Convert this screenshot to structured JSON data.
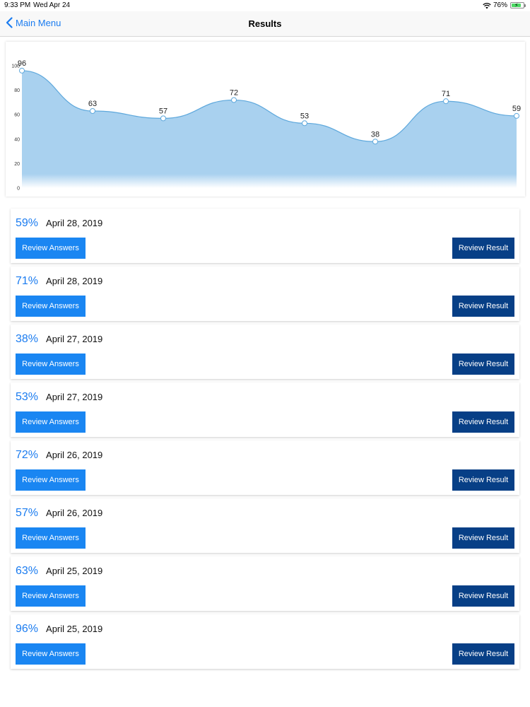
{
  "status_bar": {
    "time": "9:33 PM",
    "date": "Wed Apr 24",
    "battery": "76%",
    "wifi_icon": "wifi-icon",
    "battery_icon": "battery-charging-icon"
  },
  "nav": {
    "back_label": "Main Menu",
    "back_icon": "chevron-left-icon",
    "title": "Results"
  },
  "colors": {
    "accent": "#1b7cf0",
    "review_answers_bg": "#1a86f2",
    "review_result_bg": "#073f86",
    "chart_fill": "#a9d1ef",
    "chart_line": "#5ea8dc"
  },
  "chart_data": {
    "type": "area",
    "y_ticks": [
      "0",
      "20",
      "40",
      "60",
      "80",
      "100"
    ],
    "ylim": [
      0,
      100
    ],
    "values": [
      96,
      63,
      57,
      72,
      53,
      38,
      71,
      59
    ],
    "point_labels": [
      "96",
      "63",
      "57",
      "72",
      "53",
      "38",
      "71",
      "59"
    ],
    "title": "",
    "xlabel": "",
    "ylabel": ""
  },
  "results": [
    {
      "percent": "59%",
      "date": "April 28, 2019",
      "review_answers": "Review Answers",
      "review_result": "Review Result"
    },
    {
      "percent": "71%",
      "date": "April 28, 2019",
      "review_answers": "Review Answers",
      "review_result": "Review Result"
    },
    {
      "percent": "38%",
      "date": "April 27, 2019",
      "review_answers": "Review Answers",
      "review_result": "Review Result"
    },
    {
      "percent": "53%",
      "date": "April 27, 2019",
      "review_answers": "Review Answers",
      "review_result": "Review Result"
    },
    {
      "percent": "72%",
      "date": "April 26, 2019",
      "review_answers": "Review Answers",
      "review_result": "Review Result"
    },
    {
      "percent": "57%",
      "date": "April 26, 2019",
      "review_answers": "Review Answers",
      "review_result": "Review Result"
    },
    {
      "percent": "63%",
      "date": "April 25, 2019",
      "review_answers": "Review Answers",
      "review_result": "Review Result"
    },
    {
      "percent": "96%",
      "date": "April 25, 2019",
      "review_answers": "Review Answers",
      "review_result": "Review Result"
    }
  ]
}
